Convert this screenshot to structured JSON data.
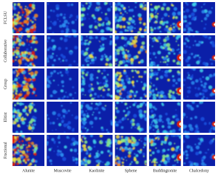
{
  "rows": [
    "FCLSU",
    "Collaborative",
    "Group",
    "Elitist",
    "Fractional"
  ],
  "columns": [
    "Alunite",
    "Muscovite",
    "Kaolinite",
    "Sphene",
    "Buddingtonite",
    "Chalcedony"
  ]
}
